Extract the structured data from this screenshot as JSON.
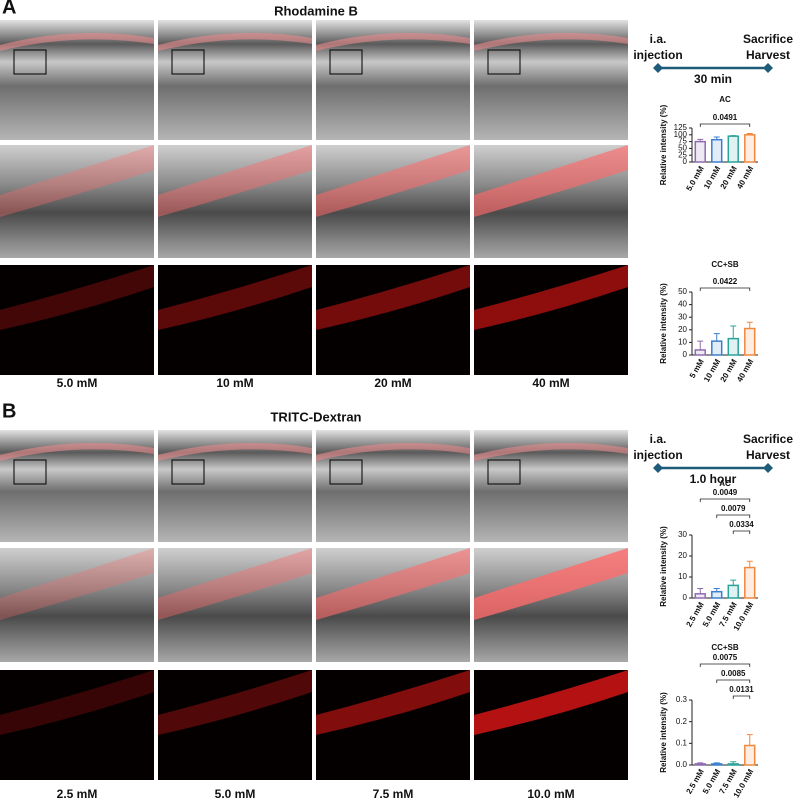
{
  "panels": [
    {
      "label": "A",
      "title": "Rhodamine B",
      "concentrations": [
        "5.0 mM",
        "10 mM",
        "20 mM",
        "40 mM"
      ],
      "timeline": {
        "start_lines": [
          "i.a.",
          "injection"
        ],
        "end_lines": [
          "Sacrifice",
          "Harvest"
        ],
        "duration": "30 min"
      }
    },
    {
      "label": "B",
      "title": "TRITC-Dextran",
      "concentrations": [
        "2.5 mM",
        "5.0 mM",
        "7.5 mM",
        "10.0 mM"
      ],
      "timeline": {
        "start_lines": [
          "i.a.",
          "injection"
        ],
        "end_lines": [
          "Sacrifice",
          "Harvest"
        ],
        "duration": "1.0 hour"
      }
    }
  ],
  "chart_data": [
    {
      "type": "bar",
      "title": "AC",
      "y_label": "Relative intensity (%)",
      "categories": [
        "5.0 mM",
        "10 mM",
        "20 mM",
        "40 mM"
      ],
      "values": [
        75,
        82,
        95,
        100
      ],
      "errors": [
        8,
        10,
        2,
        5
      ],
      "colors": [
        "#8e6bb0",
        "#3b7fd1",
        "#2aa39a",
        "#f0883e"
      ],
      "ylim": [
        0,
        125
      ],
      "yticks": [
        0,
        25,
        50,
        75,
        100,
        125
      ],
      "comparisons": [
        {
          "between": [
            0,
            3
          ],
          "p": 0.0491
        }
      ]
    },
    {
      "type": "bar",
      "title": "CC+SB",
      "y_label": "Relative intensity (%)",
      "categories": [
        "5 mM",
        "10 mM",
        "20 mM",
        "40 mM"
      ],
      "values": [
        4,
        11,
        13,
        21
      ],
      "errors": [
        7,
        6,
        10,
        5
      ],
      "colors": [
        "#8e6bb0",
        "#3b7fd1",
        "#2aa39a",
        "#f0883e"
      ],
      "ylim": [
        0,
        50
      ],
      "yticks": [
        0,
        10,
        20,
        30,
        40,
        50
      ],
      "comparisons": [
        {
          "between": [
            0,
            3
          ],
          "p": 0.0422
        }
      ]
    },
    {
      "type": "bar",
      "title": "AC",
      "y_label": "Relative intensity (%)",
      "categories": [
        "2.5 mM",
        "5.0 mM",
        "7.5 mM",
        "10.0 mM"
      ],
      "values": [
        2,
        3,
        6,
        14.5
      ],
      "errors": [
        2.5,
        1.5,
        2.5,
        3
      ],
      "colors": [
        "#8e6bb0",
        "#3b7fd1",
        "#2aa39a",
        "#f0883e"
      ],
      "ylim": [
        0,
        30
      ],
      "yticks": [
        0,
        10,
        20,
        30
      ],
      "comparisons": [
        {
          "between": [
            0,
            3
          ],
          "p": 0.0049
        },
        {
          "between": [
            1,
            3
          ],
          "p": 0.0079
        },
        {
          "between": [
            2,
            3
          ],
          "p": 0.0334
        }
      ]
    },
    {
      "type": "bar",
      "title": "CC+SB",
      "y_label": "Relative intensity (%)",
      "categories": [
        "2.5 mM",
        "5.0 mM",
        "7.5 mM",
        "10.0 mM"
      ],
      "values": [
        0.005,
        0.005,
        0.005,
        0.09
      ],
      "errors": [
        0.005,
        0.005,
        0.01,
        0.05
      ],
      "colors": [
        "#8e6bb0",
        "#3b7fd1",
        "#2aa39a",
        "#f0883e"
      ],
      "ylim": [
        0,
        0.3
      ],
      "yticks": [
        {
          "value": 0,
          "label": "0.0"
        },
        0.1,
        0.2,
        0.3
      ],
      "comparisons": [
        {
          "between": [
            0,
            3
          ],
          "p": 0.0075
        },
        {
          "between": [
            1,
            3
          ],
          "p": 0.0085
        },
        {
          "between": [
            2,
            3
          ],
          "p": 0.0131
        }
      ]
    }
  ]
}
